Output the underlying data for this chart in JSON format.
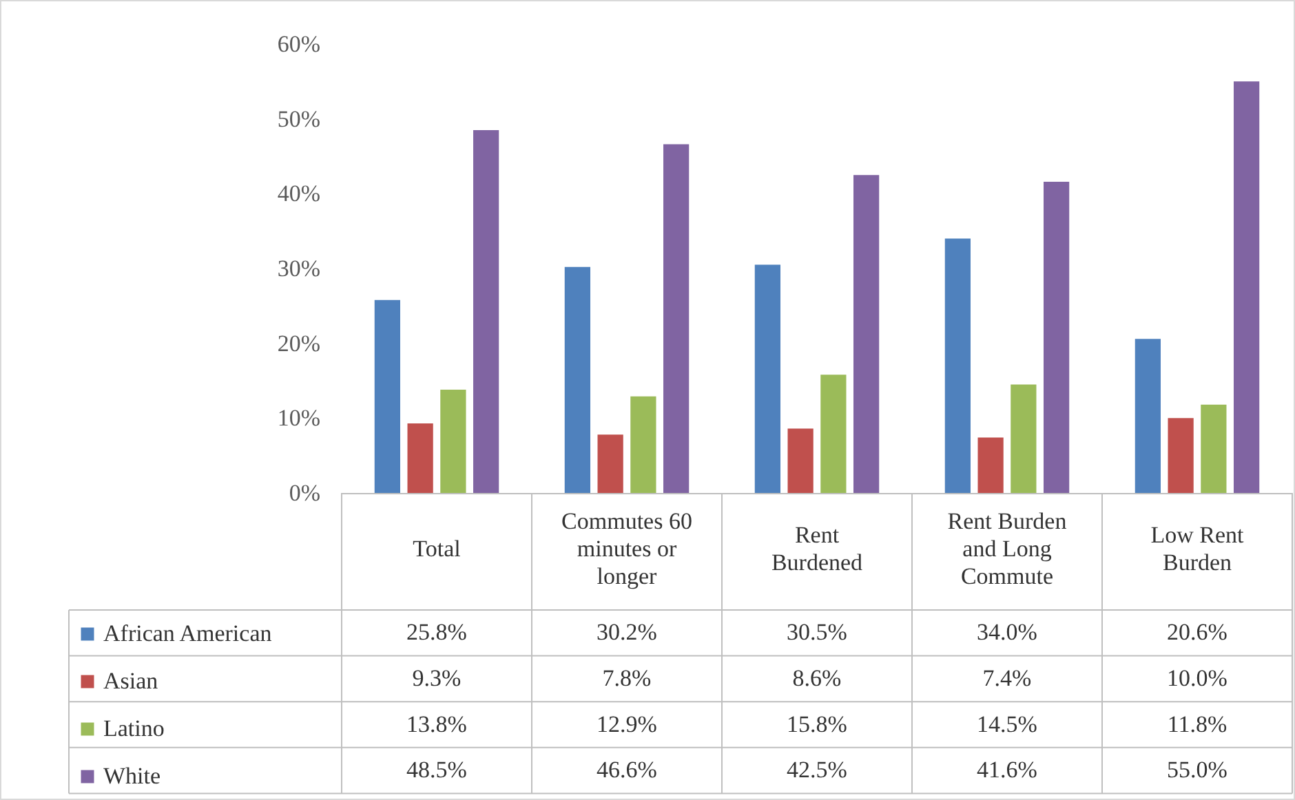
{
  "chart_data": {
    "type": "bar",
    "categories": [
      "Total",
      "Commutes 60 minutes or longer",
      "Rent Burdened",
      "Rent Burden and Long Commute",
      "Low Rent Burden"
    ],
    "series": [
      {
        "name": "African American",
        "color": "#4f81bd",
        "values": [
          25.8,
          30.2,
          30.5,
          34.0,
          20.6
        ],
        "value_labels": [
          "25.8%",
          "30.2%",
          "30.5%",
          "34.0%",
          "20.6%"
        ]
      },
      {
        "name": "Asian",
        "color": "#c0504d",
        "values": [
          9.3,
          7.8,
          8.6,
          7.4,
          10.0
        ],
        "value_labels": [
          "9.3%",
          "7.8%",
          "8.6%",
          "7.4%",
          "10.0%"
        ]
      },
      {
        "name": "Latino",
        "color": "#9bbb59",
        "values": [
          13.8,
          12.9,
          15.8,
          14.5,
          11.8
        ],
        "value_labels": [
          "13.8%",
          "12.9%",
          "15.8%",
          "14.5%",
          "11.8%"
        ]
      },
      {
        "name": "White",
        "color": "#8064a2",
        "values": [
          48.5,
          46.6,
          42.5,
          41.6,
          55.0
        ],
        "value_labels": [
          "48.5%",
          "46.6%",
          "42.5%",
          "41.6%",
          "55.0%"
        ]
      }
    ],
    "ylim": [
      0,
      60
    ],
    "yticks": [
      {
        "value": 0,
        "label": "0%"
      },
      {
        "value": 10,
        "label": "10%"
      },
      {
        "value": 20,
        "label": "20%"
      },
      {
        "value": 30,
        "label": "30%"
      },
      {
        "value": 40,
        "label": "40%"
      },
      {
        "value": 50,
        "label": "50%"
      },
      {
        "value": 60,
        "label": "60%"
      }
    ],
    "legend": "bottom"
  }
}
